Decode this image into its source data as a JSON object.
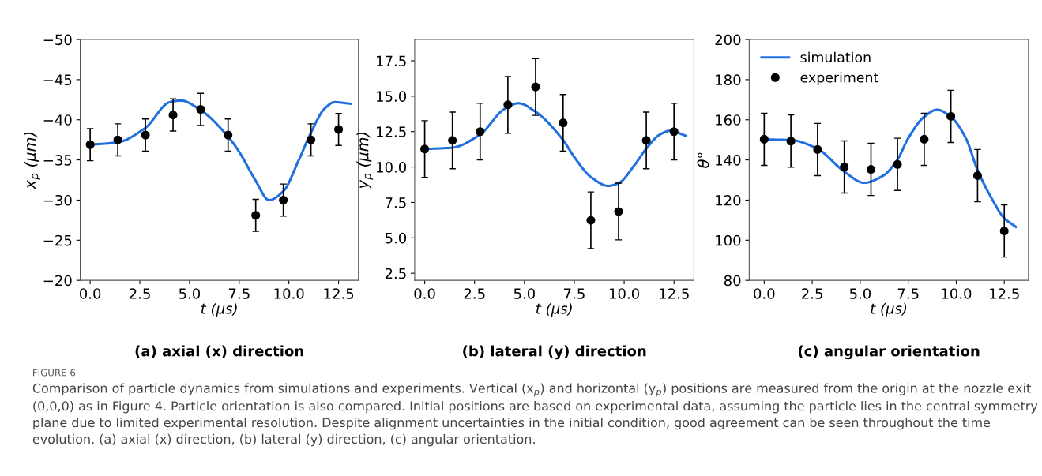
{
  "chart_data": [
    {
      "type": "line",
      "title": "(a) axial (x) direction",
      "xlabel": "t (μs)",
      "ylabel": "x$_{p}$ (μm)",
      "xlim": [
        -0.5,
        13.5
      ],
      "xticks": [
        {
          "value": 0,
          "label": "0.0"
        },
        2.5,
        {
          "value": 5,
          "label": "5.0"
        },
        7.5,
        {
          "value": 10,
          "label": "10.0"
        },
        12.5
      ],
      "ylim": [
        -20,
        -50
      ],
      "yticks": [
        {
          "value": -50,
          "label": "−50"
        },
        {
          "value": -45,
          "label": "−45"
        },
        {
          "value": -40,
          "label": "−40"
        },
        {
          "value": -35,
          "label": "−35"
        },
        {
          "value": -30,
          "label": "−30"
        },
        {
          "value": -25,
          "label": "−25"
        },
        {
          "value": -20,
          "label": "−20"
        }
      ],
      "grid": false,
      "legend": false,
      "annotations": [
        "FIGURE 6",
        "Comparison of particle dynamics from simulations and experiments. Vertical (x$_{p}$) and horizontal (y$_{p}$) positions are measured from the origin at the nozzle exit (0,0,0) as in Figure 4. Particle orientation is also compared. Initial positions are based on experimental data, assuming the particle lies in the central symmetry plane due to limited experimental resolution. Despite alignment uncertainties in the initial condition, good agreement can be seen throughout the time evolution. (a) axial (x) direction, (b) lateral (y) direction, (c) angular orientation."
      ],
      "series": [
        {
          "color": "#1f6fe0",
          "marker": "none",
          "x": [
            0,
            1.39,
            2.78,
            4.0,
            4.56,
            5.56,
            6.94,
            7.5,
            8.33,
            9.0,
            9.72,
            10.5,
            11.11,
            11.8,
            12.3,
            13.1
          ],
          "values": [
            -36.9,
            -37.2,
            -39.0,
            -42.2,
            -42.4,
            -41.2,
            -37.9,
            -36.0,
            -32.4,
            -30.0,
            -31.1,
            -35.0,
            -38.4,
            -41.4,
            -42.2,
            -42.0
          ]
        },
        {
          "type": "scatter",
          "color": "#000000",
          "marker": "circle",
          "x": [
            0,
            1.39,
            2.78,
            4.17,
            5.56,
            6.94,
            8.33,
            9.72,
            11.11,
            12.5
          ],
          "values": [
            -36.9,
            -37.5,
            -38.1,
            -40.6,
            -41.3,
            -38.1,
            -28.1,
            -30.0,
            -37.5,
            -38.8
          ],
          "errors": [
            2,
            2,
            2,
            2,
            2,
            2,
            2,
            2,
            2,
            2
          ]
        }
      ]
    },
    {
      "type": "line",
      "title": "(b) lateral (y) direction",
      "xlabel": "t (μs)",
      "ylabel": "y$_{p}$ (μm)",
      "xlim": [
        -0.5,
        13.5
      ],
      "xticks": [
        {
          "value": 0,
          "label": "0.0"
        },
        2.5,
        {
          "value": 5,
          "label": "5.0"
        },
        7.5,
        {
          "value": 10,
          "label": "10.0"
        },
        12.5
      ],
      "ylim": [
        2.0,
        19.0
      ],
      "yticks": [
        2.5,
        {
          "value": 5,
          "label": "5.0"
        },
        7.5,
        {
          "value": 10,
          "label": "10.0"
        },
        12.5,
        {
          "value": 15,
          "label": "15.0"
        },
        17.5
      ],
      "grid": false,
      "legend": false,
      "series": [
        {
          "color": "#1f6fe0",
          "marker": "none",
          "x": [
            0,
            1.39,
            2.78,
            4.0,
            4.7,
            5.56,
            6.94,
            7.5,
            8.33,
            9.2,
            9.72,
            10.5,
            11.11,
            11.8,
            12.3,
            13.1
          ],
          "values": [
            11.27,
            11.37,
            12.3,
            14.1,
            14.5,
            13.9,
            11.9,
            10.7,
            9.3,
            8.67,
            8.86,
            10.1,
            11.3,
            12.3,
            12.56,
            12.2
          ]
        },
        {
          "type": "scatter",
          "color": "#000000",
          "marker": "circle",
          "x": [
            0,
            1.39,
            2.78,
            4.17,
            5.56,
            6.94,
            8.33,
            9.72,
            11.11,
            12.5
          ],
          "values": [
            11.27,
            11.88,
            12.5,
            14.39,
            15.65,
            13.12,
            6.24,
            6.86,
            11.88,
            12.5
          ],
          "errors": [
            2,
            2,
            2,
            2,
            2,
            2,
            2,
            2,
            2,
            2
          ]
        }
      ]
    },
    {
      "type": "line",
      "title": "(c) angular orientation",
      "xlabel": "t (μs)",
      "ylabel": "θ°",
      "xlim": [
        -0.78,
        13.76
      ],
      "xticks": [
        {
          "value": 0,
          "label": "0.0"
        },
        2.5,
        {
          "value": 5,
          "label": "5.0"
        },
        7.5,
        {
          "value": 10,
          "label": "10.0"
        },
        12.5
      ],
      "ylim": [
        80,
        200
      ],
      "yticks": [
        80,
        100,
        120,
        140,
        160,
        180,
        200
      ],
      "grid": false,
      "legend": "top left",
      "series": [
        {
          "name": "simulation",
          "color": "#1f6fe0",
          "marker": "none",
          "x": [
            0,
            1.39,
            2.78,
            4.17,
            5.2,
            6.2,
            6.94,
            7.5,
            8.33,
            9.0,
            9.72,
            10.5,
            11.11,
            11.8,
            12.5,
            13.1
          ],
          "values": [
            150.2,
            149.9,
            145.5,
            134.2,
            128.6,
            132.2,
            140.2,
            150.8,
            161.5,
            165.0,
            161.5,
            150.8,
            134.9,
            121.6,
            111.0,
            106.7
          ]
        },
        {
          "type": "scatter",
          "name": "experiment",
          "color": "#000000",
          "marker": "circle",
          "x": [
            0,
            1.39,
            2.78,
            4.17,
            5.56,
            6.94,
            8.33,
            9.72,
            11.11,
            12.5
          ],
          "values": [
            150.3,
            149.4,
            145.2,
            136.5,
            135.3,
            137.8,
            150.3,
            161.7,
            132.2,
            104.6
          ],
          "errors": [
            13,
            13,
            13,
            13,
            13,
            13,
            13,
            13,
            13,
            13
          ]
        }
      ]
    }
  ]
}
